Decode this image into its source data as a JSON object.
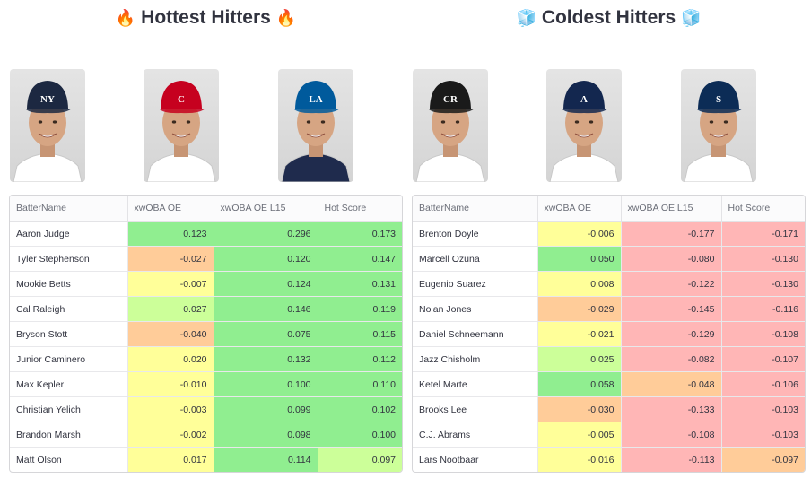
{
  "hot": {
    "title_icon": "🔥",
    "title": "Hottest Hitters",
    "players": [
      {
        "name": "Aaron Judge",
        "cap_color": "#1c2841",
        "logo_text": "NY",
        "jersey_color": "#ffffff"
      },
      {
        "name": "Tyler Stephenson",
        "cap_color": "#c6011f",
        "logo_text": "C",
        "jersey_color": "#ffffff"
      },
      {
        "name": "Mookie Betts",
        "cap_color": "#005a9c",
        "logo_text": "LA",
        "jersey_color": "#1f2b4d"
      }
    ],
    "columns": [
      "BatterName",
      "xwOBA OE",
      "xwOBA OE L15",
      "Hot Score"
    ],
    "rows": [
      {
        "name": "Aaron Judge",
        "c1": "0.123",
        "c2": "0.296",
        "c3": "0.173",
        "bg1": "#90ee90",
        "bg2": "#90ee90",
        "bg3": "#90ee90"
      },
      {
        "name": "Tyler Stephenson",
        "c1": "-0.027",
        "c2": "0.120",
        "c3": "0.147",
        "bg1": "#ffcc99",
        "bg2": "#90ee90",
        "bg3": "#90ee90"
      },
      {
        "name": "Mookie Betts",
        "c1": "-0.007",
        "c2": "0.124",
        "c3": "0.131",
        "bg1": "#ffff99",
        "bg2": "#90ee90",
        "bg3": "#90ee90"
      },
      {
        "name": "Cal Raleigh",
        "c1": "0.027",
        "c2": "0.146",
        "c3": "0.119",
        "bg1": "#ccff99",
        "bg2": "#90ee90",
        "bg3": "#90ee90"
      },
      {
        "name": "Bryson Stott",
        "c1": "-0.040",
        "c2": "0.075",
        "c3": "0.115",
        "bg1": "#ffcc99",
        "bg2": "#90ee90",
        "bg3": "#90ee90"
      },
      {
        "name": "Junior Caminero",
        "c1": "0.020",
        "c2": "0.132",
        "c3": "0.112",
        "bg1": "#ffff99",
        "bg2": "#90ee90",
        "bg3": "#90ee90"
      },
      {
        "name": "Max Kepler",
        "c1": "-0.010",
        "c2": "0.100",
        "c3": "0.110",
        "bg1": "#ffff99",
        "bg2": "#90ee90",
        "bg3": "#90ee90"
      },
      {
        "name": "Christian Yelich",
        "c1": "-0.003",
        "c2": "0.099",
        "c3": "0.102",
        "bg1": "#ffff99",
        "bg2": "#90ee90",
        "bg3": "#90ee90"
      },
      {
        "name": "Brandon Marsh",
        "c1": "-0.002",
        "c2": "0.098",
        "c3": "0.100",
        "bg1": "#ffff99",
        "bg2": "#90ee90",
        "bg3": "#90ee90"
      },
      {
        "name": "Matt Olson",
        "c1": "0.017",
        "c2": "0.114",
        "c3": "0.097",
        "bg1": "#ffff99",
        "bg2": "#90ee90",
        "bg3": "#ccff99"
      }
    ]
  },
  "cold": {
    "title_icon": "🧊",
    "title": "Coldest Hitters",
    "players": [
      {
        "name": "Brenton Doyle",
        "cap_color": "#1a1a1a",
        "logo_text": "CR",
        "jersey_color": "#ffffff"
      },
      {
        "name": "Marcell Ozuna",
        "cap_color": "#13274f",
        "logo_text": "A",
        "jersey_color": "#ffffff"
      },
      {
        "name": "Eugenio Suarez",
        "cap_color": "#0c2c56",
        "logo_text": "S",
        "jersey_color": "#ffffff"
      }
    ],
    "columns": [
      "BatterName",
      "xwOBA OE",
      "xwOBA OE L15",
      "Hot Score"
    ],
    "rows": [
      {
        "name": "Brenton Doyle",
        "c1": "-0.006",
        "c2": "-0.177",
        "c3": "-0.171",
        "bg1": "#ffff99",
        "bg2": "#ffb6b6",
        "bg3": "#ffb6b6"
      },
      {
        "name": "Marcell Ozuna",
        "c1": "0.050",
        "c2": "-0.080",
        "c3": "-0.130",
        "bg1": "#90ee90",
        "bg2": "#ffb6b6",
        "bg3": "#ffb6b6"
      },
      {
        "name": "Eugenio Suarez",
        "c1": "0.008",
        "c2": "-0.122",
        "c3": "-0.130",
        "bg1": "#ffff99",
        "bg2": "#ffb6b6",
        "bg3": "#ffb6b6"
      },
      {
        "name": "Nolan Jones",
        "c1": "-0.029",
        "c2": "-0.145",
        "c3": "-0.116",
        "bg1": "#ffcc99",
        "bg2": "#ffb6b6",
        "bg3": "#ffb6b6"
      },
      {
        "name": "Daniel Schneemann",
        "c1": "-0.021",
        "c2": "-0.129",
        "c3": "-0.108",
        "bg1": "#ffff99",
        "bg2": "#ffb6b6",
        "bg3": "#ffb6b6"
      },
      {
        "name": "Jazz Chisholm",
        "c1": "0.025",
        "c2": "-0.082",
        "c3": "-0.107",
        "bg1": "#ccff99",
        "bg2": "#ffb6b6",
        "bg3": "#ffb6b6"
      },
      {
        "name": "Ketel Marte",
        "c1": "0.058",
        "c2": "-0.048",
        "c3": "-0.106",
        "bg1": "#90ee90",
        "bg2": "#ffcc99",
        "bg3": "#ffb6b6"
      },
      {
        "name": "Brooks Lee",
        "c1": "-0.030",
        "c2": "-0.133",
        "c3": "-0.103",
        "bg1": "#ffcc99",
        "bg2": "#ffb6b6",
        "bg3": "#ffb6b6"
      },
      {
        "name": "C.J. Abrams",
        "c1": "-0.005",
        "c2": "-0.108",
        "c3": "-0.103",
        "bg1": "#ffff99",
        "bg2": "#ffb6b6",
        "bg3": "#ffb6b6"
      },
      {
        "name": "Lars Nootbaar",
        "c1": "-0.016",
        "c2": "-0.113",
        "c3": "-0.097",
        "bg1": "#ffff99",
        "bg2": "#ffb6b6",
        "bg3": "#ffcc99"
      }
    ]
  }
}
